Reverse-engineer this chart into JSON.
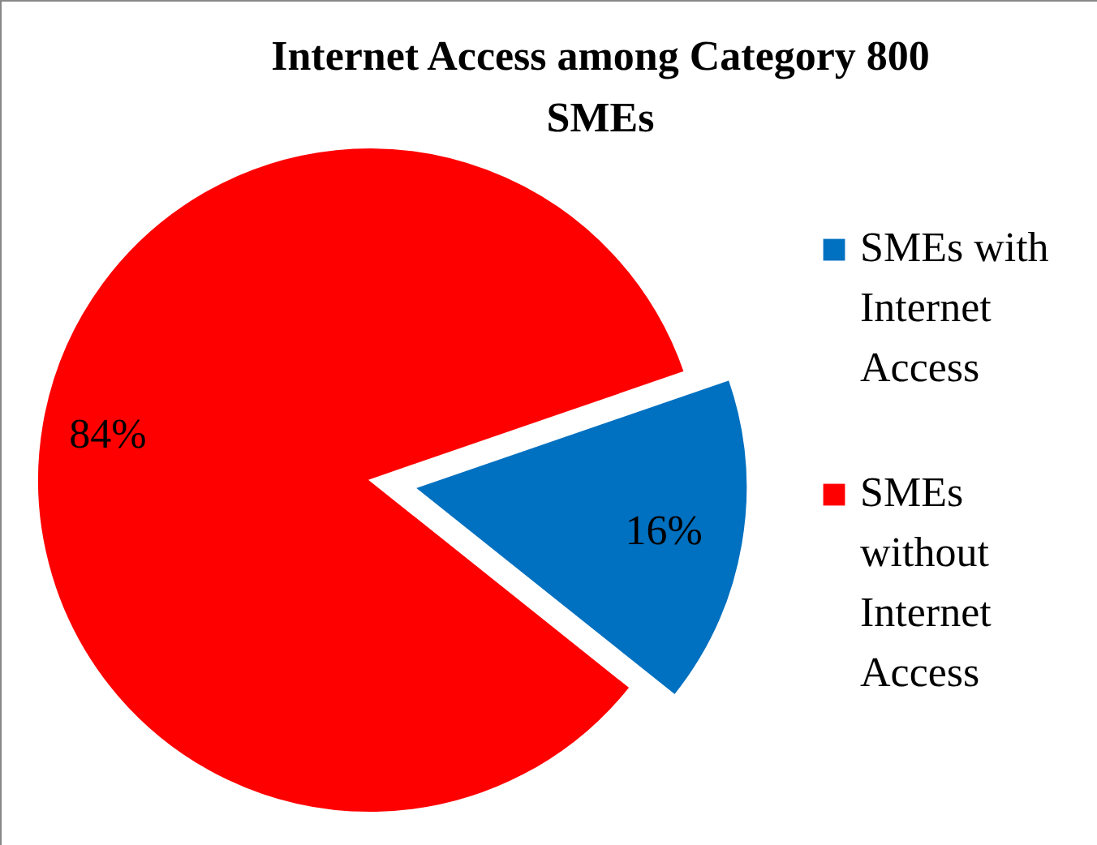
{
  "chart_data": {
    "type": "pie",
    "title": "Internet Access among Category 800 SMEs",
    "categories": [
      "SMEs with Internet Access",
      "SMEs without Internet Access"
    ],
    "values": [
      16,
      84
    ],
    "colors": [
      "#0070c0",
      "#ff0000"
    ],
    "value_labels": [
      "16%",
      "84%"
    ],
    "legend": "right"
  }
}
